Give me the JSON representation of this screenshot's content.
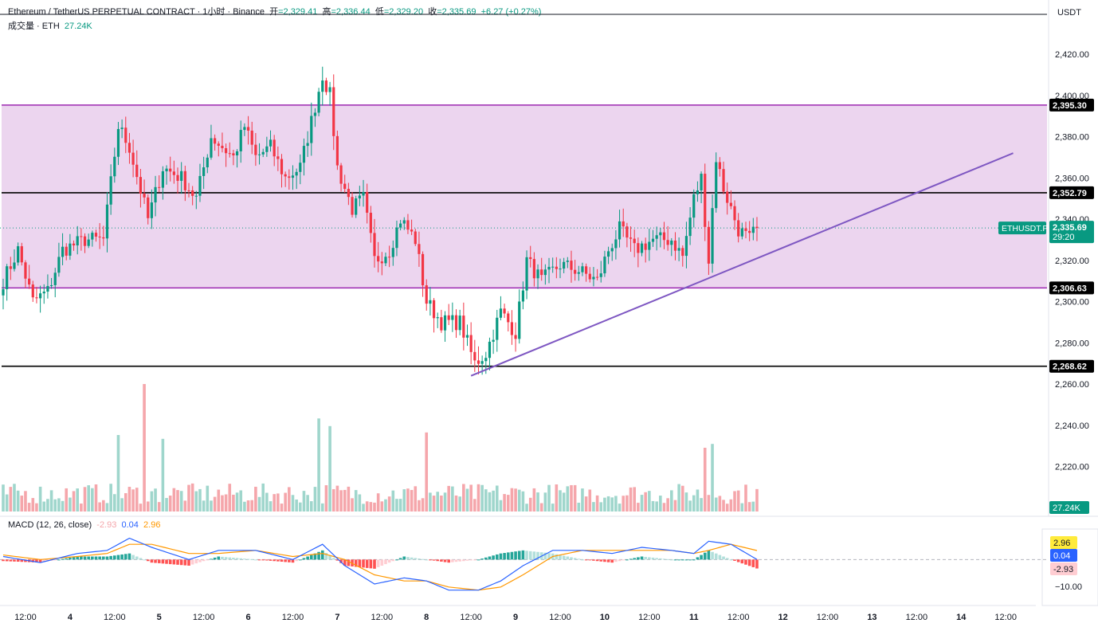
{
  "header": {
    "title": "Ethereum / TetherUS PERPETUAL CONTRACT · 1小时 · Binance",
    "open_label": "开",
    "open": "=2,329.41",
    "high_label": "高",
    "high": "=2,336.44",
    "low_label": "低",
    "low": "=2,329.20",
    "close_label": "收",
    "close": "=2,335.69",
    "change": "+6.27 (+0.27%)",
    "volume_label": "成交量 · ETH",
    "volume_value": "27.24K"
  },
  "currency": "USDT",
  "colors": {
    "up": "#089981",
    "down": "#f23645",
    "vol_up": "#9fd6cc",
    "vol_down": "#f5a6ab",
    "zone_fill": "#ecd5ef",
    "zone_border": "#9c27b0",
    "trendline": "#7e57c2",
    "level": "#000000",
    "macd_line": "#2962ff",
    "signal_line": "#ff9800"
  },
  "chart_data": {
    "type": "candlestick",
    "symbol": "ETHUSDT.P",
    "price_ylim": [
      2250,
      2428
    ],
    "price_ticks": [
      "2,420.00",
      "2,400.00",
      "2,380.00",
      "2,360.00",
      "2,340.00",
      "2,320.00",
      "2,300.00",
      "2,280.00",
      "2,260.00",
      "2,240.00",
      "2,220.00"
    ],
    "price_tick_values": [
      2420,
      2400,
      2380,
      2360,
      2340,
      2320,
      2300,
      2280,
      2260,
      2240,
      2220
    ],
    "time_labels": [
      {
        "label": "12:00",
        "bar": 6
      },
      {
        "label": "4",
        "bar": 18
      },
      {
        "label": "12:00",
        "bar": 30
      },
      {
        "label": "5",
        "bar": 42
      },
      {
        "label": "12:00",
        "bar": 54
      },
      {
        "label": "6",
        "bar": 66
      },
      {
        "label": "12:00",
        "bar": 78
      },
      {
        "label": "7",
        "bar": 90
      },
      {
        "label": "12:00",
        "bar": 102
      },
      {
        "label": "8",
        "bar": 114
      },
      {
        "label": "12:00",
        "bar": 126
      },
      {
        "label": "9",
        "bar": 138
      },
      {
        "label": "12:00",
        "bar": 150
      },
      {
        "label": "10",
        "bar": 162
      },
      {
        "label": "12:00",
        "bar": 174
      },
      {
        "label": "11",
        "bar": 186
      },
      {
        "label": "12:00",
        "bar": 198
      },
      {
        "label": "12",
        "bar": 210
      },
      {
        "label": "12:00",
        "bar": 222
      },
      {
        "label": "13",
        "bar": 234
      },
      {
        "label": "12:00",
        "bar": 246
      },
      {
        "label": "14",
        "bar": 258
      },
      {
        "label": "12:00",
        "bar": 270
      }
    ],
    "zone": {
      "top": 2395.3,
      "bottom": 2306.63
    },
    "levels": [
      {
        "value": 2395.3,
        "label": "2,395.30",
        "style": "zone"
      },
      {
        "value": 2352.79,
        "label": "2,352.79",
        "style": "level"
      },
      {
        "value": 2306.63,
        "label": "2,306.63",
        "style": "zone"
      },
      {
        "value": 2268.62,
        "label": "2,268.62",
        "style": "level"
      }
    ],
    "current_price": {
      "value": 2335.69,
      "label": "2,335.69",
      "countdown": "29:20",
      "symbol_tag": "ETHUSDT.P"
    },
    "trendline": {
      "from": {
        "bar": 126,
        "price": 2264
      },
      "to": {
        "bar": 272,
        "price": 2372
      }
    },
    "key_points": [
      {
        "bar": 0,
        "price": 2310
      },
      {
        "bar": 4,
        "price": 2325
      },
      {
        "bar": 8,
        "price": 2300
      },
      {
        "bar": 12,
        "price": 2305
      },
      {
        "bar": 16,
        "price": 2325
      },
      {
        "bar": 22,
        "price": 2330
      },
      {
        "bar": 27,
        "price": 2330
      },
      {
        "bar": 31,
        "price": 2385
      },
      {
        "bar": 34,
        "price": 2375
      },
      {
        "bar": 39,
        "price": 2340
      },
      {
        "bar": 43,
        "price": 2365
      },
      {
        "bar": 48,
        "price": 2360
      },
      {
        "bar": 52,
        "price": 2350
      },
      {
        "bar": 56,
        "price": 2380
      },
      {
        "bar": 62,
        "price": 2370
      },
      {
        "bar": 65,
        "price": 2385
      },
      {
        "bar": 68,
        "price": 2370
      },
      {
        "bar": 72,
        "price": 2375
      },
      {
        "bar": 76,
        "price": 2360
      },
      {
        "bar": 80,
        "price": 2365
      },
      {
        "bar": 84,
        "price": 2395
      },
      {
        "bar": 86,
        "price": 2410
      },
      {
        "bar": 88,
        "price": 2400
      },
      {
        "bar": 90,
        "price": 2365
      },
      {
        "bar": 94,
        "price": 2345
      },
      {
        "bar": 97,
        "price": 2350
      },
      {
        "bar": 100,
        "price": 2320
      },
      {
        "bar": 104,
        "price": 2325
      },
      {
        "bar": 107,
        "price": 2340
      },
      {
        "bar": 111,
        "price": 2330
      },
      {
        "bar": 114,
        "price": 2300
      },
      {
        "bar": 118,
        "price": 2290
      },
      {
        "bar": 123,
        "price": 2290
      },
      {
        "bar": 127,
        "price": 2270
      },
      {
        "bar": 130,
        "price": 2275
      },
      {
        "bar": 134,
        "price": 2295
      },
      {
        "bar": 138,
        "price": 2285
      },
      {
        "bar": 141,
        "price": 2320
      },
      {
        "bar": 145,
        "price": 2310
      },
      {
        "bar": 150,
        "price": 2318
      },
      {
        "bar": 155,
        "price": 2315
      },
      {
        "bar": 160,
        "price": 2310
      },
      {
        "bar": 163,
        "price": 2325
      },
      {
        "bar": 166,
        "price": 2335
      },
      {
        "bar": 170,
        "price": 2325
      },
      {
        "bar": 175,
        "price": 2330
      },
      {
        "bar": 180,
        "price": 2330
      },
      {
        "bar": 183,
        "price": 2322
      },
      {
        "bar": 186,
        "price": 2350
      },
      {
        "bar": 188,
        "price": 2360
      },
      {
        "bar": 190,
        "price": 2320
      },
      {
        "bar": 192,
        "price": 2370
      },
      {
        "bar": 194,
        "price": 2355
      },
      {
        "bar": 196,
        "price": 2345
      },
      {
        "bar": 198,
        "price": 2335
      },
      {
        "bar": 201,
        "price": 2330
      },
      {
        "bar": 203,
        "price": 2336
      }
    ],
    "volume": {
      "last_label": "27.24K",
      "spikes": [
        {
          "bar": 38,
          "value": 1.0
        },
        {
          "bar": 85,
          "value": 0.73
        },
        {
          "bar": 114,
          "value": 0.62
        },
        {
          "bar": 31,
          "value": 0.6
        },
        {
          "bar": 43,
          "value": 0.57
        },
        {
          "bar": 88,
          "value": 0.67
        },
        {
          "bar": 191,
          "value": 0.53
        },
        {
          "bar": 189,
          "value": 0.5
        }
      ]
    },
    "macd": {
      "label": "MACD (12, 26, close)",
      "histogram": "-2.93",
      "macd": "0.04",
      "signal": "2.96",
      "ticks": [
        "−10.00"
      ],
      "ylim": [
        -14,
        10
      ],
      "key_points": [
        {
          "bar": 0,
          "macd": 1,
          "signal": 1.5
        },
        {
          "bar": 10,
          "macd": -1,
          "signal": 0
        },
        {
          "bar": 20,
          "macd": 2,
          "signal": 1
        },
        {
          "bar": 28,
          "macd": 3,
          "signal": 2
        },
        {
          "bar": 34,
          "macd": 7,
          "signal": 5
        },
        {
          "bar": 40,
          "macd": 4,
          "signal": 5
        },
        {
          "bar": 50,
          "macd": 0,
          "signal": 2
        },
        {
          "bar": 58,
          "macd": 3,
          "signal": 2
        },
        {
          "bar": 68,
          "macd": 3,
          "signal": 3
        },
        {
          "bar": 78,
          "macd": 0,
          "signal": 1
        },
        {
          "bar": 86,
          "macd": 5,
          "signal": 2
        },
        {
          "bar": 92,
          "macd": -2,
          "signal": 0
        },
        {
          "bar": 100,
          "macd": -8,
          "signal": -5
        },
        {
          "bar": 108,
          "macd": -6,
          "signal": -7
        },
        {
          "bar": 114,
          "macd": -7,
          "signal": -7
        },
        {
          "bar": 120,
          "macd": -10,
          "signal": -9
        },
        {
          "bar": 128,
          "macd": -10,
          "signal": -10
        },
        {
          "bar": 134,
          "macd": -7,
          "signal": -9
        },
        {
          "bar": 140,
          "macd": -2,
          "signal": -5
        },
        {
          "bar": 148,
          "macd": 3,
          "signal": 1
        },
        {
          "bar": 156,
          "macd": 3,
          "signal": 3
        },
        {
          "bar": 164,
          "macd": 2,
          "signal": 3
        },
        {
          "bar": 172,
          "macd": 4,
          "signal": 3
        },
        {
          "bar": 180,
          "macd": 3,
          "signal": 3
        },
        {
          "bar": 186,
          "macd": 2,
          "signal": 2
        },
        {
          "bar": 190,
          "macd": 6,
          "signal": 3
        },
        {
          "bar": 196,
          "macd": 5,
          "signal": 5
        },
        {
          "bar": 203,
          "macd": 0.04,
          "signal": 2.96
        }
      ]
    }
  }
}
